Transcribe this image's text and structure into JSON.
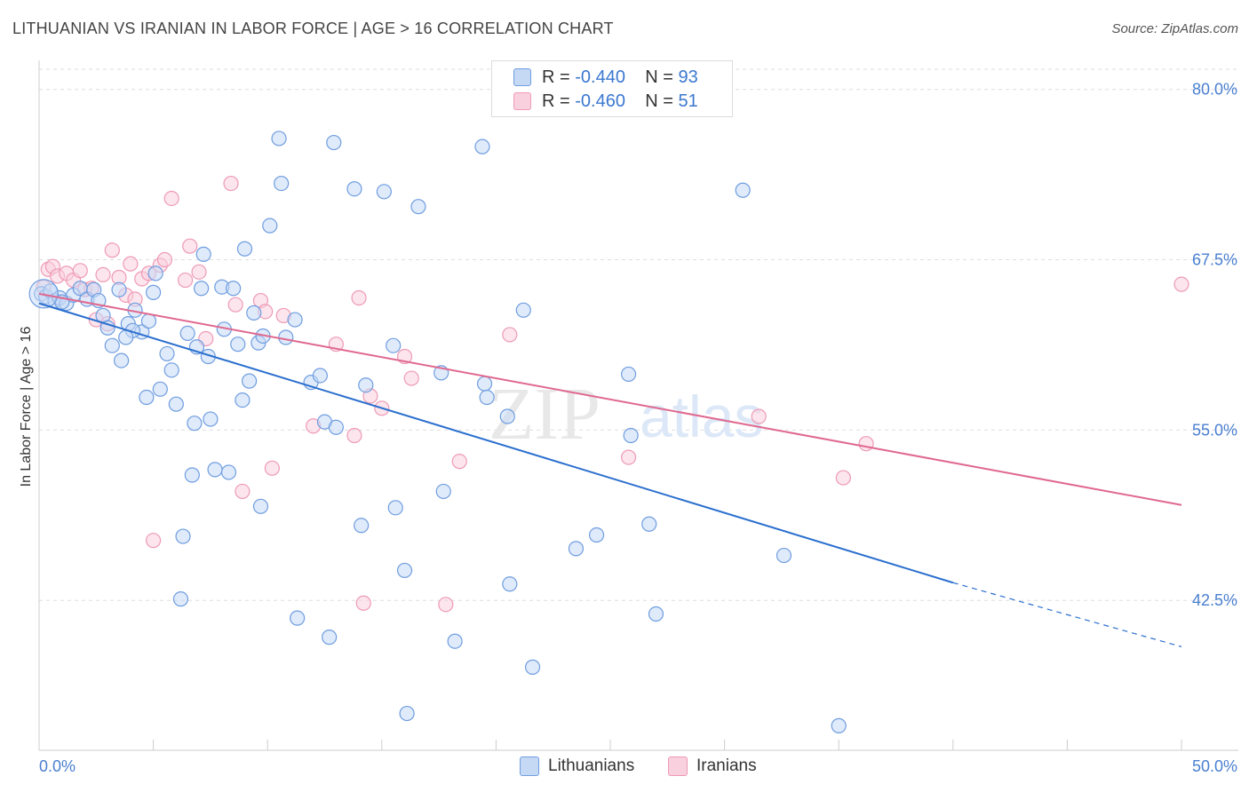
{
  "title": "LITHUANIAN VS IRANIAN IN LABOR FORCE | AGE > 16 CORRELATION CHART",
  "source": "Source: ZipAtlas.com",
  "watermark": {
    "zip": "ZIP",
    "atlas": "atlas"
  },
  "legend": {
    "series1": {
      "r_label": "R = ",
      "r_value": "-0.440",
      "n_label": "N = ",
      "n_value": "93"
    },
    "series2": {
      "r_label": "R = ",
      "r_value": "-0.460",
      "n_label": "N = ",
      "n_value": "51"
    }
  },
  "colors": {
    "blue_fill": "#c5d9f5",
    "blue_stroke": "#6f9de0",
    "blue_line": "#2b6fce",
    "pink_fill": "#f9d0de",
    "pink_stroke": "#ee9ab5",
    "pink_line": "#e0688f",
    "grid": "#dddddd",
    "axis_label": "#4a7fd0"
  },
  "chart_data": {
    "type": "scatter",
    "title": "LITHUANIAN VS IRANIAN IN LABOR FORCE | AGE > 16 CORRELATION CHART",
    "xlabel": "",
    "ylabel": "In Labor Force | Age > 16",
    "xlim": [
      0,
      50
    ],
    "ylim": [
      31.5,
      82
    ],
    "x_tick_labels": [
      "0.0%",
      "50.0%"
    ],
    "y_ticks": [
      42.5,
      55.0,
      67.5,
      80.0
    ],
    "y_tick_labels": [
      "42.5%",
      "55.0%",
      "67.5%",
      "80.0%"
    ],
    "grid": true,
    "legend_position": "top-center",
    "series": [
      {
        "name": "Lithuanians",
        "r": -0.44,
        "n": 93,
        "trend": {
          "x0": 0,
          "y0": 64.3,
          "x1": 40,
          "y1": 43.8,
          "dash_to_x": 50,
          "dash_to_y": 39.1
        },
        "points": [
          [
            0.1,
            65.0
          ],
          [
            0.3,
            64.8
          ],
          [
            0.5,
            65.2
          ],
          [
            0.7,
            64.5
          ],
          [
            0.9,
            64.7
          ],
          [
            1.2,
            64.3
          ],
          [
            1.5,
            64.9
          ],
          [
            1.8,
            65.4
          ],
          [
            2.1,
            64.6
          ],
          [
            2.4,
            65.3
          ],
          [
            2.8,
            63.4
          ],
          [
            3.0,
            62.5
          ],
          [
            3.2,
            61.2
          ],
          [
            3.6,
            60.1
          ],
          [
            3.9,
            62.8
          ],
          [
            4.2,
            63.8
          ],
          [
            4.5,
            62.2
          ],
          [
            4.8,
            63.0
          ],
          [
            5.1,
            66.5
          ],
          [
            5.3,
            58.0
          ],
          [
            4.7,
            57.4
          ],
          [
            5.6,
            60.6
          ],
          [
            5.8,
            59.4
          ],
          [
            6.0,
            56.9
          ],
          [
            6.3,
            47.2
          ],
          [
            6.2,
            42.6
          ],
          [
            6.5,
            62.1
          ],
          [
            6.7,
            51.7
          ],
          [
            6.9,
            61.1
          ],
          [
            7.1,
            65.4
          ],
          [
            7.2,
            67.9
          ],
          [
            7.4,
            60.4
          ],
          [
            7.5,
            55.8
          ],
          [
            7.7,
            52.1
          ],
          [
            8.0,
            65.5
          ],
          [
            8.1,
            62.4
          ],
          [
            8.3,
            51.9
          ],
          [
            8.5,
            65.4
          ],
          [
            8.7,
            61.3
          ],
          [
            8.9,
            57.2
          ],
          [
            9.0,
            68.3
          ],
          [
            9.2,
            58.6
          ],
          [
            9.4,
            63.6
          ],
          [
            9.6,
            61.4
          ],
          [
            9.7,
            49.4
          ],
          [
            9.8,
            61.9
          ],
          [
            10.1,
            70.0
          ],
          [
            10.5,
            76.4
          ],
          [
            10.6,
            73.1
          ],
          [
            10.8,
            61.8
          ],
          [
            11.2,
            63.1
          ],
          [
            11.3,
            41.2
          ],
          [
            11.9,
            58.5
          ],
          [
            12.3,
            59.0
          ],
          [
            12.5,
            55.6
          ],
          [
            12.7,
            39.8
          ],
          [
            12.9,
            76.1
          ],
          [
            13.0,
            55.2
          ],
          [
            13.8,
            72.7
          ],
          [
            14.1,
            48.0
          ],
          [
            14.3,
            58.3
          ],
          [
            15.1,
            72.5
          ],
          [
            15.5,
            61.2
          ],
          [
            15.6,
            49.3
          ],
          [
            16.0,
            44.7
          ],
          [
            16.1,
            34.2
          ],
          [
            16.6,
            71.4
          ],
          [
            17.6,
            59.2
          ],
          [
            17.7,
            50.5
          ],
          [
            18.2,
            39.5
          ],
          [
            19.4,
            75.8
          ],
          [
            19.5,
            58.4
          ],
          [
            19.6,
            57.4
          ],
          [
            20.5,
            56.0
          ],
          [
            20.6,
            43.7
          ],
          [
            21.2,
            63.8
          ],
          [
            21.6,
            37.6
          ],
          [
            23.5,
            46.3
          ],
          [
            24.4,
            47.3
          ],
          [
            25.8,
            59.1
          ],
          [
            25.9,
            54.6
          ],
          [
            26.7,
            48.1
          ],
          [
            27.0,
            41.5
          ],
          [
            30.8,
            72.6
          ],
          [
            32.6,
            45.8
          ],
          [
            35.0,
            33.3
          ],
          [
            1.0,
            64.4
          ],
          [
            3.5,
            65.3
          ],
          [
            2.6,
            64.5
          ],
          [
            5.0,
            65.1
          ],
          [
            4.1,
            62.3
          ],
          [
            6.8,
            55.5
          ],
          [
            3.8,
            61.8
          ]
        ]
      },
      {
        "name": "Iranians",
        "r": -0.46,
        "n": 51,
        "trend": {
          "x0": 0,
          "y0": 65.0,
          "x1": 50,
          "y1": 49.5
        },
        "points": [
          [
            0.2,
            65.5
          ],
          [
            0.4,
            66.8
          ],
          [
            0.6,
            67.0
          ],
          [
            0.8,
            66.3
          ],
          [
            1.2,
            66.5
          ],
          [
            1.5,
            66.0
          ],
          [
            1.8,
            66.7
          ],
          [
            2.0,
            65.3
          ],
          [
            2.3,
            65.4
          ],
          [
            2.5,
            63.1
          ],
          [
            2.8,
            66.4
          ],
          [
            3.0,
            62.8
          ],
          [
            3.2,
            68.2
          ],
          [
            3.5,
            66.2
          ],
          [
            3.8,
            64.9
          ],
          [
            4.0,
            67.2
          ],
          [
            4.2,
            64.6
          ],
          [
            4.5,
            66.1
          ],
          [
            4.8,
            66.5
          ],
          [
            5.0,
            46.9
          ],
          [
            5.3,
            67.1
          ],
          [
            5.5,
            67.5
          ],
          [
            5.8,
            72.0
          ],
          [
            6.4,
            66.0
          ],
          [
            6.6,
            68.5
          ],
          [
            7.0,
            66.6
          ],
          [
            7.3,
            61.7
          ],
          [
            8.4,
            73.1
          ],
          [
            8.6,
            64.2
          ],
          [
            8.9,
            50.5
          ],
          [
            9.7,
            64.5
          ],
          [
            9.9,
            63.7
          ],
          [
            10.2,
            52.2
          ],
          [
            10.7,
            63.4
          ],
          [
            12.0,
            55.3
          ],
          [
            13.0,
            61.3
          ],
          [
            13.8,
            54.6
          ],
          [
            14.0,
            64.7
          ],
          [
            14.2,
            42.3
          ],
          [
            14.5,
            57.5
          ],
          [
            15.0,
            56.6
          ],
          [
            16.0,
            60.4
          ],
          [
            16.3,
            58.8
          ],
          [
            17.8,
            42.2
          ],
          [
            18.4,
            52.7
          ],
          [
            20.6,
            62.0
          ],
          [
            25.8,
            53.0
          ],
          [
            31.5,
            56.0
          ],
          [
            35.2,
            51.5
          ],
          [
            36.2,
            54.0
          ],
          [
            50.0,
            65.7
          ]
        ]
      }
    ]
  },
  "bottom_legend": {
    "series1": "Lithuanians",
    "series2": "Iranians"
  }
}
